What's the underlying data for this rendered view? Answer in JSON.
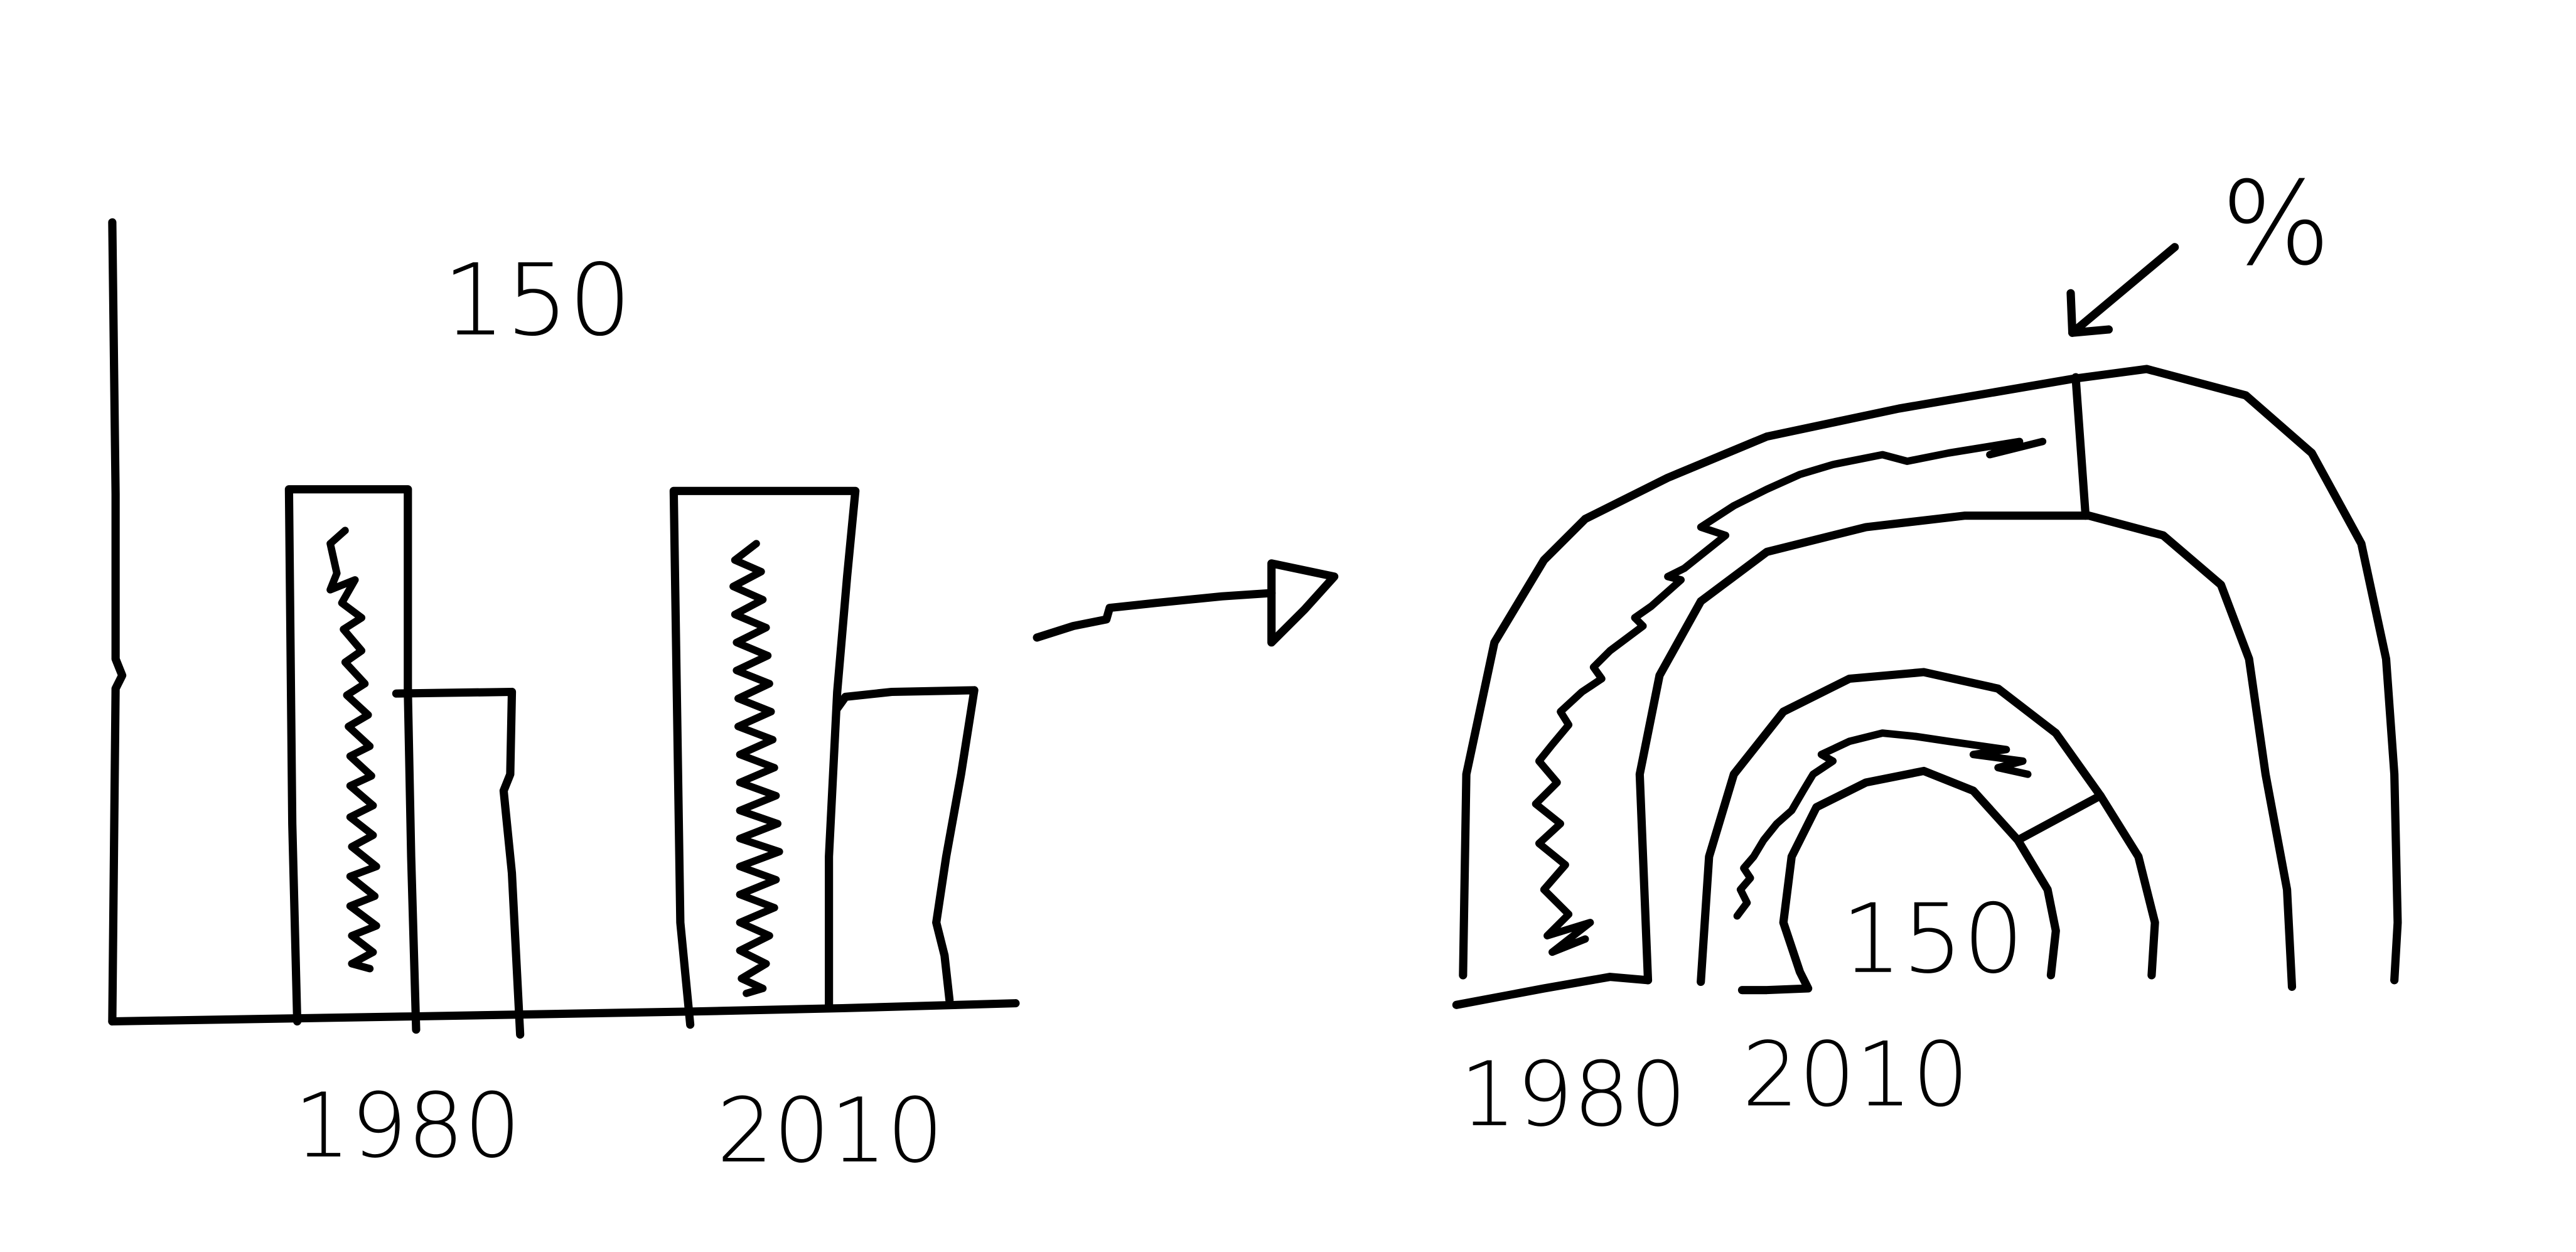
{
  "bar_sketch": {
    "total_label": "150",
    "categories": [
      "1980",
      "2010"
    ]
  },
  "arc_sketch": {
    "center_label": "150",
    "percent_label": "%",
    "categories": [
      "1980",
      "2010"
    ]
  }
}
